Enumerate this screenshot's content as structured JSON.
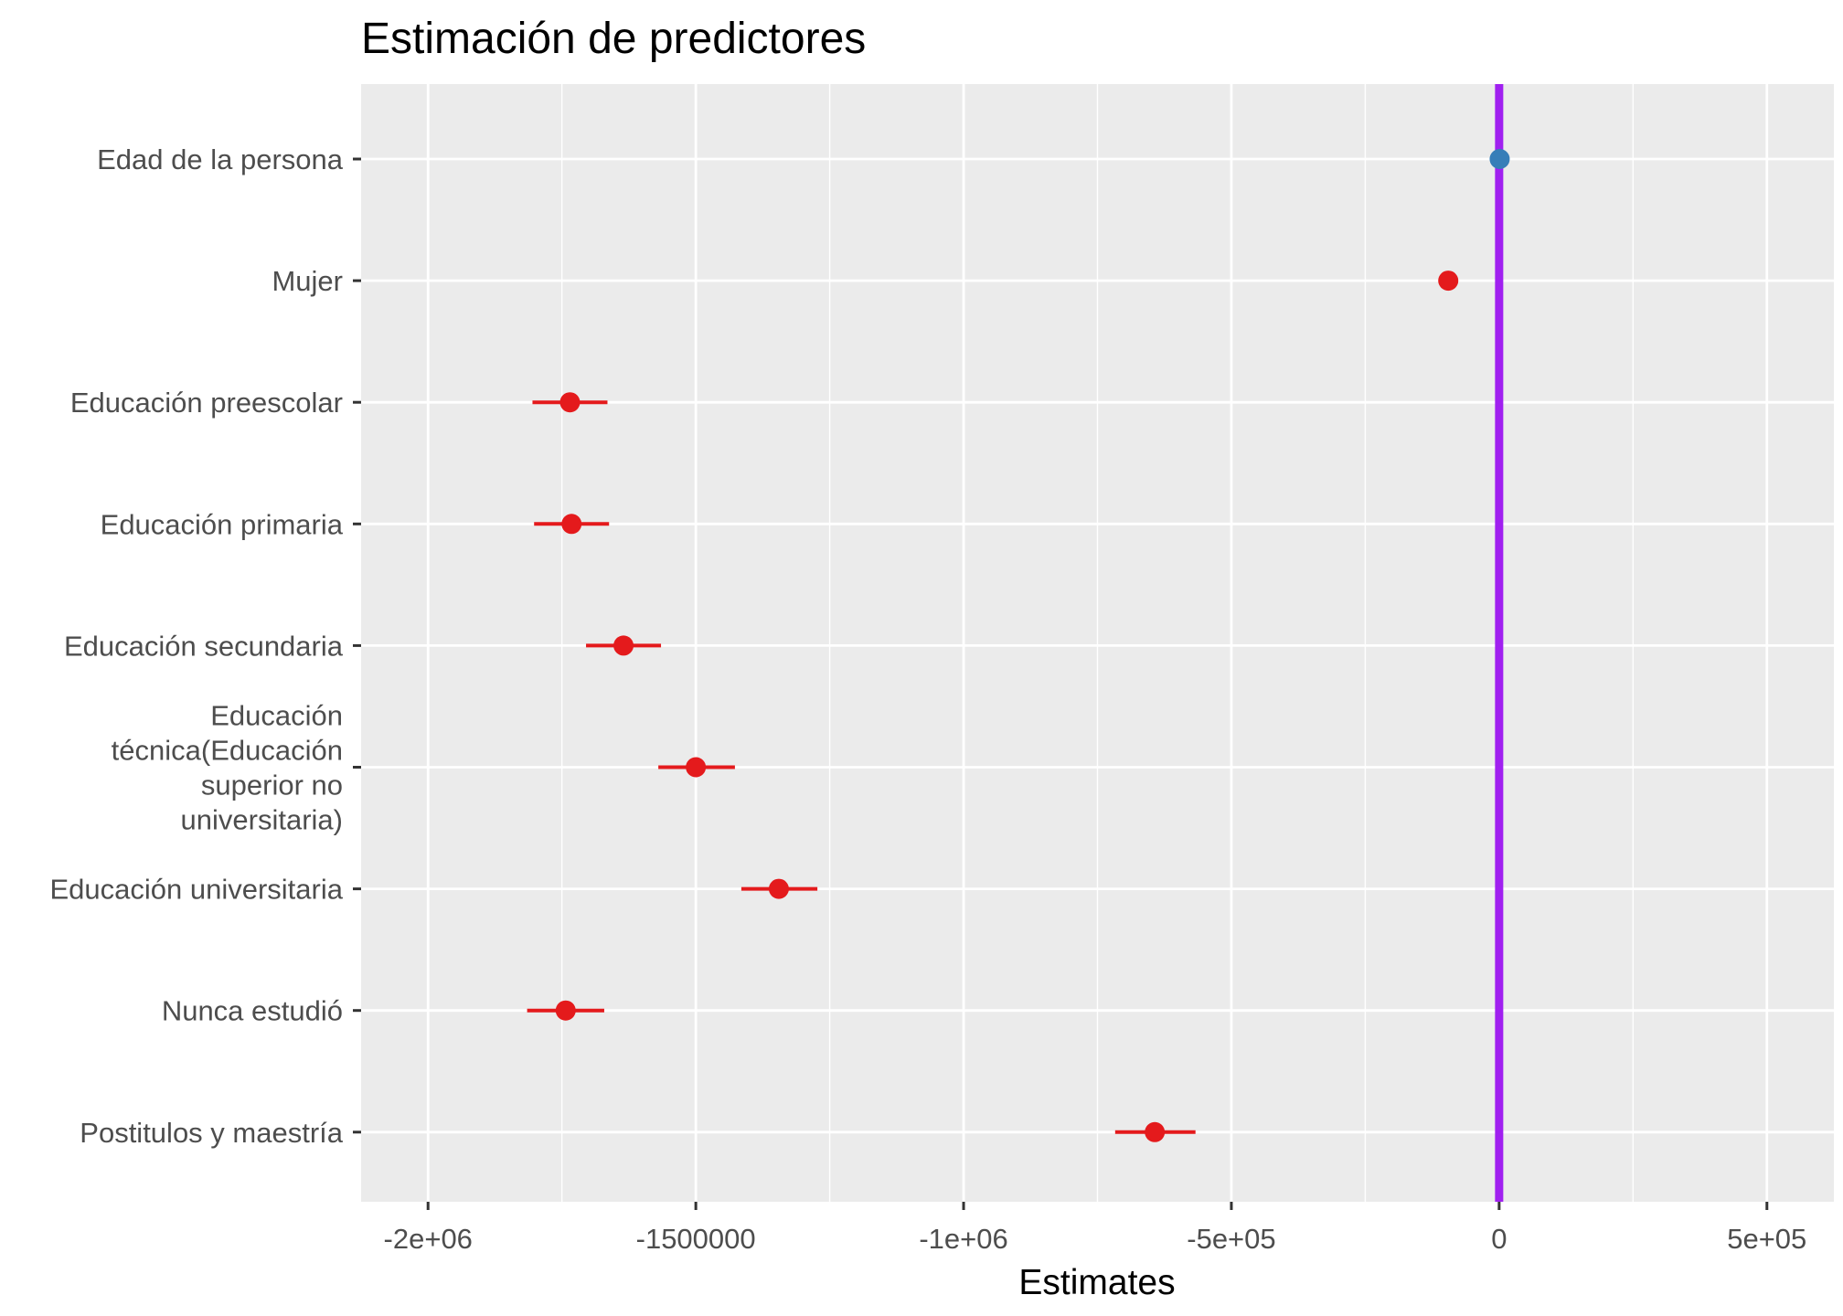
{
  "chart_data": {
    "type": "scatter",
    "title": "Estimación de predictores",
    "xlabel": "Estimates",
    "ylabel": "",
    "xlim": [
      -2125000,
      625000
    ],
    "x_ticks": [
      {
        "value": -2000000,
        "label": "-2e+06"
      },
      {
        "value": -1500000,
        "label": "-1500000"
      },
      {
        "value": -1000000,
        "label": "-1e+06"
      },
      {
        "value": -500000,
        "label": "-5e+05"
      },
      {
        "value": 0,
        "label": "0"
      },
      {
        "value": 500000,
        "label": "5e+05"
      }
    ],
    "grid": true,
    "legend": "none",
    "reference_line": {
      "x": 0,
      "color": "#a020f0"
    },
    "colors": {
      "positive": "#377eb8",
      "negative": "#e41a1c",
      "panel": "#ebebeb",
      "grid": "#ffffff"
    },
    "terms": [
      {
        "label": "Edad de la persona",
        "estimate": 1000,
        "conf_low": 0,
        "conf_high": 2000,
        "sign": "positive"
      },
      {
        "label": "Mujer",
        "estimate": -95000,
        "conf_low": -100000,
        "conf_high": -90000,
        "sign": "negative"
      },
      {
        "label": "Educación preescolar",
        "estimate": -1735000,
        "conf_low": -1805000,
        "conf_high": -1665000,
        "sign": "negative"
      },
      {
        "label": "Educación primaria",
        "estimate": -1732000,
        "conf_low": -1802000,
        "conf_high": -1662000,
        "sign": "negative"
      },
      {
        "label": "Educación secundaria",
        "estimate": -1635000,
        "conf_low": -1705000,
        "conf_high": -1565000,
        "sign": "negative"
      },
      {
        "label": "Educación técnica(Educación superior no universitaria)",
        "label_lines": [
          "Educación",
          "técnica(Educación",
          "superior no",
          "universitaria)"
        ],
        "estimate": -1500000,
        "conf_low": -1570000,
        "conf_high": -1427000,
        "sign": "negative"
      },
      {
        "label": "Educación universitaria",
        "estimate": -1345000,
        "conf_low": -1415000,
        "conf_high": -1273000,
        "sign": "negative"
      },
      {
        "label": "Nunca estudió",
        "estimate": -1743000,
        "conf_low": -1815000,
        "conf_high": -1671000,
        "sign": "negative"
      },
      {
        "label": "Postitulos y maestría",
        "estimate": -643000,
        "conf_low": -717000,
        "conf_high": -567000,
        "sign": "negative"
      }
    ]
  }
}
